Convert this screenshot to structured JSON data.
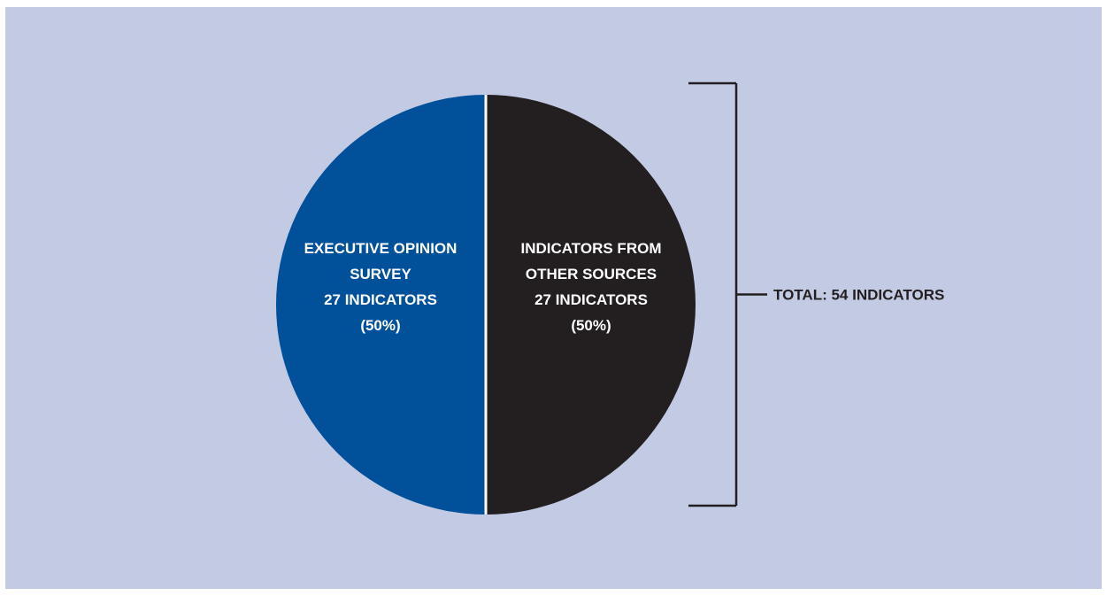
{
  "chart_data": {
    "type": "pie",
    "slices": [
      {
        "label_lines": [
          "EXECUTIVE OPINION",
          "SURVEY",
          "27 INDICATORS",
          "(50%)"
        ],
        "value": 27,
        "percent": 50,
        "color": "#00519a"
      },
      {
        "label_lines": [
          "INDICATORS FROM",
          "OTHER SOURCES",
          "27 INDICATORS",
          "(50%)"
        ],
        "value": 27,
        "percent": 50,
        "color": "#231f20"
      }
    ],
    "total_label": "TOTAL: 54 INDICATORS",
    "background_color": "#c3cae4",
    "separator_color": "#ffffff",
    "bracket_color": "#231f20"
  }
}
